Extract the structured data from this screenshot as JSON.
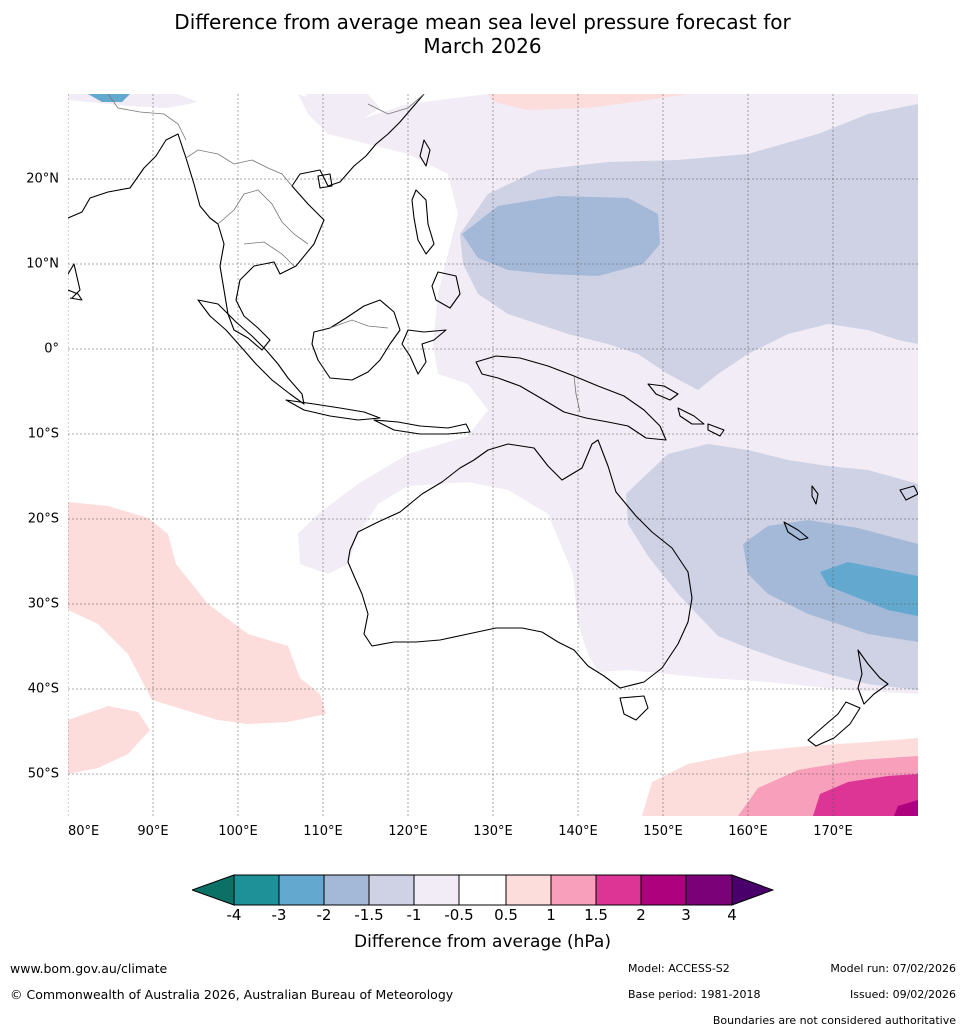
{
  "title_line1": "Difference from average mean sea level pressure forecast for",
  "title_line2": "March 2026",
  "map": {
    "lon_range": [
      80,
      180
    ],
    "lat_range": [
      -55,
      30
    ],
    "lat_labels": [
      "20°N",
      "10°N",
      "0°",
      "10°S",
      "20°S",
      "30°S",
      "40°S",
      "50°S"
    ],
    "lon_labels": [
      "80°E",
      "90°E",
      "100°E",
      "110°E",
      "120°E",
      "130°E",
      "140°E",
      "150°E",
      "160°E",
      "170°E"
    ],
    "colors": {
      "neg_4": "#0b7065",
      "neg_3_to_4": "#1e9097",
      "neg_2_to_3": "#63a9cf",
      "neg_15_to_2": "#a4b9d8",
      "neg_1_to_15": "#cfd1e5",
      "neg_05_to_1": "#f1ecf5",
      "neutral": "#ffffff",
      "pos_05_to_1": "#fddcdc",
      "pos_1_to_15": "#f89fbb",
      "pos_15_to_2": "#dd3596",
      "pos_2_to_3": "#ad017e",
      "pos_3_to_4": "#7a0177",
      "pos_4": "#49006a"
    }
  },
  "colorbar": {
    "ticks": [
      "-4",
      "-3",
      "-2",
      "-1.5",
      "-1",
      "-0.5",
      "0.5",
      "1",
      "1.5",
      "2",
      "3",
      "4"
    ],
    "label": "Difference from average (hPa)"
  },
  "footer": {
    "website": "www.bom.gov.au/climate",
    "copyright": "© Commonwealth of Australia 2026, Australian Bureau of Meteorology",
    "model": "Model: ACCESS-S2",
    "base_period": "Base period: 1981-2018",
    "model_run": "Model run: 07/02/2026",
    "issued": "Issued: 09/02/2026",
    "disclaimer": "Boundaries are not considered authoritative"
  }
}
